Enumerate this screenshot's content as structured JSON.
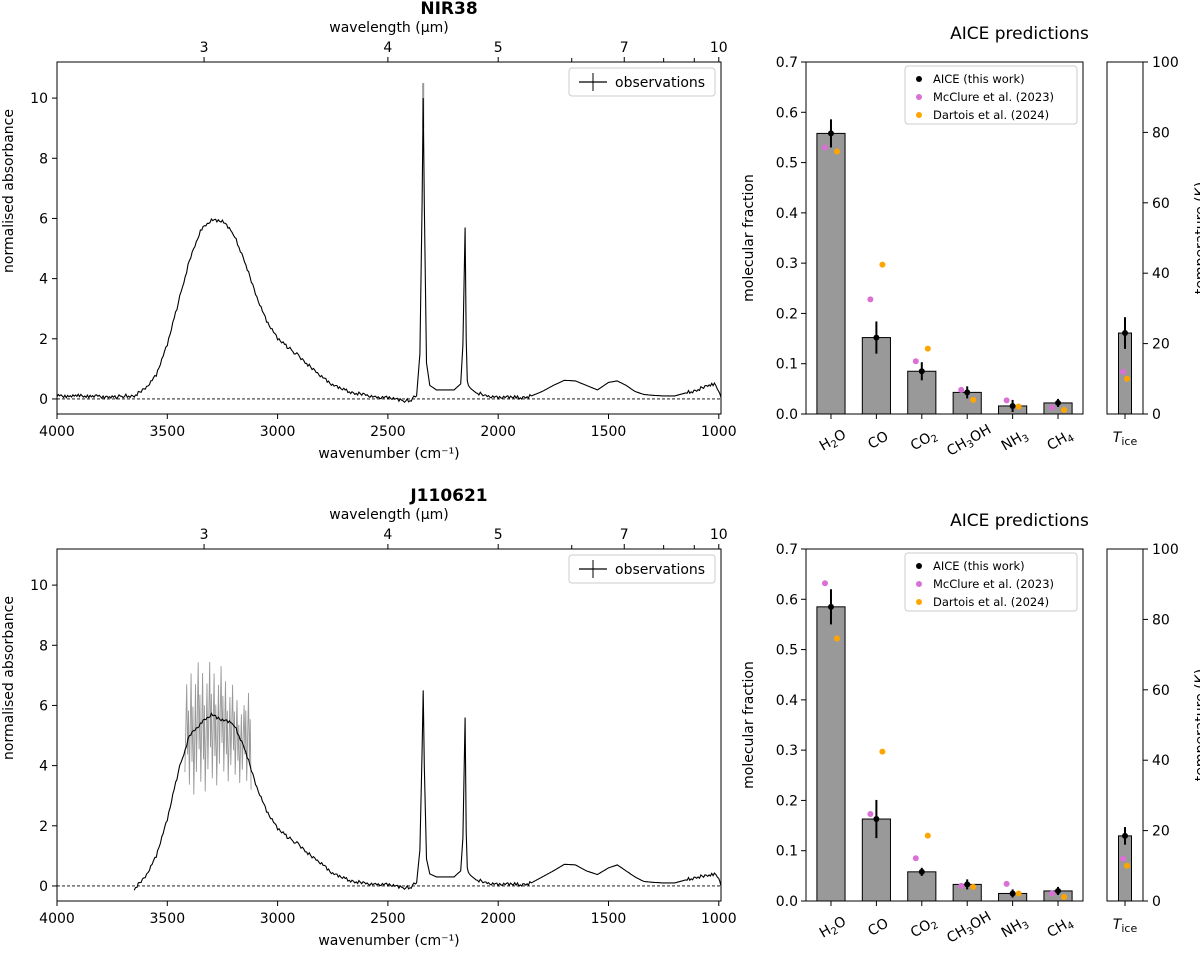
{
  "chart_data": [
    {
      "type": "line",
      "title": "NIR38",
      "xlabel": "wavenumber (cm⁻¹)",
      "ylabel": "normalised absorbance",
      "top_xlabel": "wavelength (µm)",
      "xlim": [
        4000,
        990
      ],
      "ylim": [
        -0.5,
        11.2
      ],
      "xticks": [
        4000,
        3500,
        3000,
        2500,
        2000,
        1500,
        1000
      ],
      "yticks": [
        0,
        2,
        4,
        6,
        8,
        10
      ],
      "top_ticks": [
        3,
        4,
        5,
        7,
        10
      ],
      "legend": "observations",
      "series": [
        {
          "name": "observations",
          "x": [
            4000,
            3850,
            3750,
            3700,
            3650,
            3600,
            3550,
            3500,
            3450,
            3400,
            3350,
            3300,
            3250,
            3200,
            3150,
            3100,
            3050,
            3000,
            2950,
            2900,
            2850,
            2800,
            2750,
            2700,
            2650,
            2600,
            2550,
            2500,
            2450,
            2400,
            2370,
            2355,
            2345,
            2340,
            2335,
            2325,
            2310,
            2280,
            2250,
            2200,
            2170,
            2160,
            2150,
            2145,
            2140,
            2135,
            2125,
            2100,
            2050,
            2000,
            1950,
            1900,
            1850,
            1800,
            1750,
            1700,
            1650,
            1600,
            1550,
            1500,
            1460,
            1420,
            1380,
            1340,
            1300,
            1250,
            1200,
            1150,
            1100,
            1050,
            1020,
            1000,
            990
          ],
          "y": [
            0.1,
            0.1,
            0.05,
            0.1,
            0.1,
            0.35,
            0.8,
            1.8,
            3.2,
            4.6,
            5.6,
            5.95,
            5.9,
            5.5,
            4.6,
            3.5,
            2.6,
            2.0,
            1.7,
            1.4,
            1.05,
            0.75,
            0.45,
            0.3,
            0.2,
            0.15,
            0.05,
            0.05,
            -0.05,
            -0.05,
            0.1,
            1.5,
            6.5,
            10.0,
            6.5,
            1.2,
            0.45,
            0.3,
            0.3,
            0.3,
            0.5,
            1.8,
            5.7,
            2.0,
            0.6,
            0.45,
            0.35,
            0.2,
            0.1,
            0.05,
            0.05,
            0.05,
            0.1,
            0.25,
            0.45,
            0.62,
            0.6,
            0.45,
            0.3,
            0.55,
            0.6,
            0.45,
            0.25,
            0.15,
            0.12,
            0.1,
            0.1,
            0.2,
            0.3,
            0.45,
            0.5,
            0.3,
            0.05
          ],
          "uncertainty_peak": {
            "x": 2340,
            "upper": 10.5
          }
        }
      ]
    },
    {
      "type": "bar",
      "title": "AICE predictions",
      "ylabel": "molecular fraction",
      "categories": [
        "H₂O",
        "CO",
        "CO₂",
        "CH₃OH",
        "NH₃",
        "CH₄"
      ],
      "ylim": [
        0,
        0.7
      ],
      "yticks": [
        "0.0",
        "0.1",
        "0.2",
        "0.3",
        "0.4",
        "0.5",
        "0.6",
        "0.7"
      ],
      "series": [
        {
          "name": "AICE (this work)",
          "values": [
            0.558,
            0.152,
            0.085,
            0.043,
            0.016,
            0.022
          ],
          "errors": [
            0.028,
            0.032,
            0.018,
            0.012,
            0.012,
            0.008
          ]
        },
        {
          "name": "McClure et al. (2023)",
          "values": [
            0.53,
            0.228,
            0.105,
            0.048,
            0.027,
            0.013
          ]
        },
        {
          "name": "Dartois et al. (2024)",
          "values": [
            0.522,
            0.297,
            0.13,
            0.028,
            0.015,
            0.008
          ]
        }
      ],
      "colors": {
        "bar": "#999999",
        "aice": "#000000",
        "mcclure": "#da70d6",
        "dartois": "#ffa500"
      }
    },
    {
      "type": "bar",
      "category": "T_ice",
      "category_main": "T",
      "category_sub": "ice",
      "ylabel": "temperature (K)",
      "ylim": [
        0,
        100
      ],
      "yticks": [
        "0",
        "20",
        "40",
        "60",
        "80",
        "100"
      ],
      "aice": {
        "value": 23,
        "error": 4.5
      },
      "mcclure": 12,
      "dartois": 10
    },
    {
      "type": "line",
      "title": "J110621",
      "xlabel": "wavenumber (cm⁻¹)",
      "ylabel": "normalised absorbance",
      "top_xlabel": "wavelength (µm)",
      "xlim": [
        4000,
        990
      ],
      "ylim": [
        -0.5,
        11.2
      ],
      "xticks": [
        4000,
        3500,
        3000,
        2500,
        2000,
        1500,
        1000
      ],
      "yticks": [
        0,
        2,
        4,
        6,
        8,
        10
      ],
      "top_ticks": [
        3,
        4,
        5,
        7,
        10
      ],
      "legend": "observations",
      "series": [
        {
          "name": "observations",
          "x": [
            3650,
            3600,
            3550,
            3500,
            3450,
            3400,
            3350,
            3300,
            3250,
            3200,
            3150,
            3100,
            3050,
            3000,
            2950,
            2900,
            2850,
            2800,
            2750,
            2700,
            2650,
            2600,
            2550,
            2500,
            2450,
            2400,
            2370,
            2355,
            2345,
            2340,
            2335,
            2325,
            2310,
            2280,
            2250,
            2200,
            2170,
            2160,
            2150,
            2145,
            2140,
            2135,
            2125,
            2100,
            2050,
            2000,
            1950,
            1900,
            1850,
            1800,
            1750,
            1700,
            1650,
            1600,
            1550,
            1500,
            1460,
            1420,
            1380,
            1340,
            1300,
            1250,
            1200,
            1150,
            1100,
            1050,
            1020,
            1000,
            990
          ],
          "y": [
            -0.1,
            0.3,
            1.0,
            2.2,
            3.8,
            5.0,
            5.4,
            5.7,
            5.5,
            5.4,
            4.6,
            3.4,
            2.5,
            1.9,
            1.6,
            1.35,
            1.0,
            0.75,
            0.4,
            0.25,
            0.15,
            0.1,
            0.05,
            0.05,
            -0.05,
            -0.05,
            0.1,
            1.2,
            4.5,
            6.5,
            4.0,
            0.9,
            0.4,
            0.3,
            0.3,
            0.3,
            0.5,
            1.6,
            5.6,
            1.8,
            0.6,
            0.45,
            0.35,
            0.2,
            0.1,
            0.05,
            0.05,
            0.05,
            0.1,
            0.3,
            0.5,
            0.72,
            0.7,
            0.5,
            0.38,
            0.6,
            0.7,
            0.5,
            0.3,
            0.15,
            0.12,
            0.1,
            0.1,
            0.2,
            0.3,
            0.35,
            0.4,
            0.3,
            0.0
          ],
          "noise_band": [
            {
              "x": 3400,
              "lo": 3.0,
              "hi": 7.8
            },
            {
              "x": 3300,
              "lo": 3.2,
              "hi": 7.8
            },
            {
              "x": 3250,
              "lo": 3.5,
              "hi": 7.6
            },
            {
              "x": 3150,
              "lo": 3.4,
              "hi": 6.2
            }
          ]
        }
      ]
    },
    {
      "type": "bar",
      "title": "AICE predictions",
      "ylabel": "molecular fraction",
      "categories": [
        "H₂O",
        "CO",
        "CO₂",
        "CH₃OH",
        "NH₃",
        "CH₄"
      ],
      "ylim": [
        0,
        0.7
      ],
      "yticks": [
        "0.0",
        "0.1",
        "0.2",
        "0.3",
        "0.4",
        "0.5",
        "0.6",
        "0.7"
      ],
      "series": [
        {
          "name": "AICE (this work)",
          "values": [
            0.585,
            0.163,
            0.058,
            0.033,
            0.015,
            0.02
          ],
          "errors": [
            0.035,
            0.038,
            0.008,
            0.01,
            0.008,
            0.008
          ]
        },
        {
          "name": "McClure et al. (2023)",
          "values": [
            0.632,
            0.173,
            0.085,
            0.03,
            0.034,
            0.015
          ]
        },
        {
          "name": "Dartois et al. (2024)",
          "values": [
            0.522,
            0.297,
            0.13,
            0.028,
            0.015,
            0.008
          ]
        }
      ],
      "colors": {
        "bar": "#999999",
        "aice": "#000000",
        "mcclure": "#da70d6",
        "dartois": "#ffa500"
      }
    },
    {
      "type": "bar",
      "category": "T_ice",
      "category_main": "T",
      "category_sub": "ice",
      "ylabel": "temperature (K)",
      "ylim": [
        0,
        100
      ],
      "yticks": [
        "0",
        "20",
        "40",
        "60",
        "80",
        "100"
      ],
      "aice": {
        "value": 18.5,
        "error": 2.5
      },
      "mcclure": 12,
      "dartois": 10
    }
  ]
}
